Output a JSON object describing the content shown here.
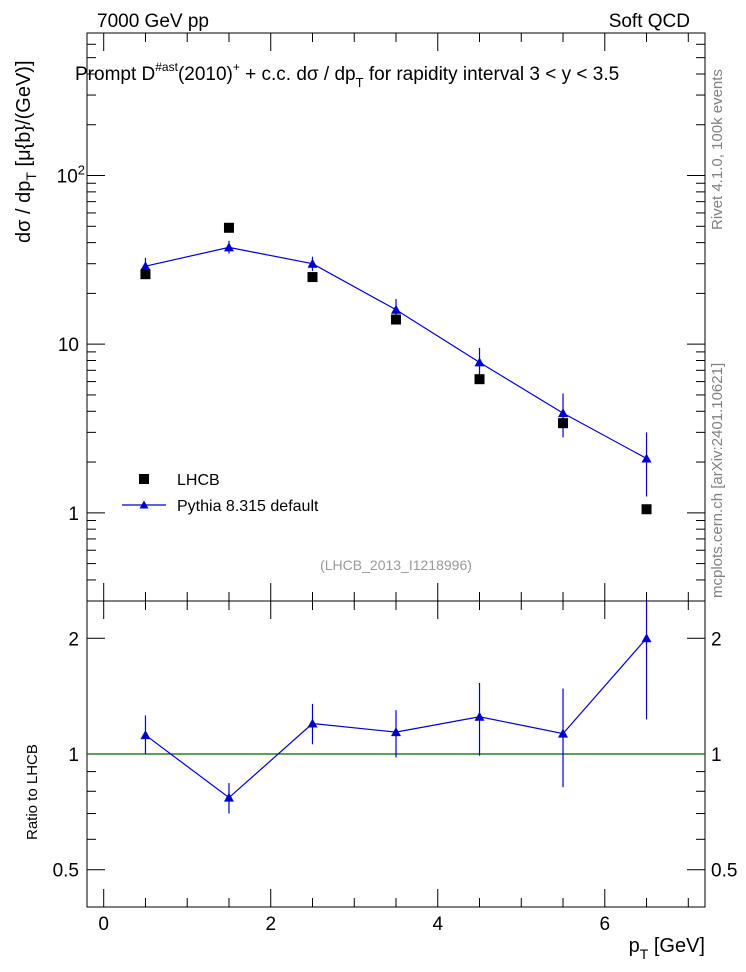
{
  "header": {
    "left": "7000 GeV pp",
    "right": "Soft QCD"
  },
  "side_labels": {
    "rivet": "Rivet 4.1.0,  100k events",
    "mcplots": "mcplots.cern.ch [arXiv:2401.10621]"
  },
  "watermark": "(LHCB_2013_I1218996)",
  "colors": {
    "mc": "#0000cc",
    "data": "#000000",
    "ref_line": "#006400",
    "text_gray": "#808080"
  },
  "chart_data": [
    {
      "type": "scatter",
      "title": {
        "prefix": "Prompt D",
        "sup1": "#ast",
        "middle": "(2010)",
        "sup2": "+",
        "rest": " + c.c.  dσ / dp",
        "sub": "T",
        "suffix": " for rapidity interval 3 < y < 3.5"
      },
      "ylabel": {
        "pre": "dσ / dp",
        "sub": "T",
        "post": " [μ{b}/(GeV)]"
      },
      "yscale": "log",
      "ylim": [
        0.3,
        700
      ],
      "yticks": [
        {
          "value": 1,
          "label": "1",
          "exp": ""
        },
        {
          "value": 10,
          "label": "10",
          "exp": ""
        },
        {
          "value": 100,
          "label": "10",
          "exp": "2"
        }
      ],
      "xlim": [
        -0.2,
        7.2
      ],
      "series": [
        {
          "name": "LHCB",
          "marker": "square",
          "x": [
            0.5,
            1.5,
            2.5,
            3.5,
            4.5,
            5.5,
            6.5
          ],
          "y": [
            26.0,
            49.0,
            25.0,
            14.0,
            6.2,
            3.4,
            1.05
          ],
          "yerr": [
            0,
            0,
            0,
            0,
            0,
            0,
            0
          ]
        },
        {
          "name": "Pythia 8.315 default",
          "marker": "triangle",
          "line": true,
          "x": [
            0.5,
            1.5,
            2.5,
            3.5,
            4.5,
            5.5,
            6.5
          ],
          "y": [
            29.0,
            37.5,
            30.0,
            16.0,
            7.8,
            3.9,
            2.1
          ],
          "yerr_up": [
            3.5,
            3.5,
            3.0,
            2.5,
            1.7,
            1.2,
            0.9
          ],
          "yerr_down": [
            3.0,
            3.0,
            2.8,
            2.2,
            1.4,
            1.1,
            0.85
          ]
        }
      ],
      "legend": {
        "placement": "lower-left"
      }
    },
    {
      "type": "scatter",
      "ylabel": "Ratio to LHCB",
      "yscale": "log",
      "ylim": [
        0.4,
        2.5
      ],
      "yticks": [
        {
          "value": 0.5,
          "label": "0.5"
        },
        {
          "value": 1,
          "label": "1"
        },
        {
          "value": 2,
          "label": "2"
        }
      ],
      "xlabel": {
        "pre": "p",
        "sub": "T",
        "post": " [GeV]"
      },
      "xlim": [
        -0.2,
        7.2
      ],
      "xticks": [
        {
          "value": 0,
          "label": "0"
        },
        {
          "value": 2,
          "label": "2"
        },
        {
          "value": 4,
          "label": "4"
        },
        {
          "value": 6,
          "label": "6"
        }
      ],
      "reference_line": 1,
      "series": [
        {
          "name": "Pythia 8.315 default",
          "marker": "triangle",
          "line": true,
          "x": [
            0.5,
            1.5,
            2.5,
            3.5,
            4.5,
            5.5,
            6.5
          ],
          "y": [
            1.12,
            0.77,
            1.2,
            1.14,
            1.25,
            1.13,
            2.0
          ],
          "yerr_up": [
            0.14,
            0.07,
            0.15,
            0.16,
            0.28,
            0.35,
            0.5
          ],
          "yerr_down": [
            0.12,
            0.07,
            0.14,
            0.16,
            0.26,
            0.31,
            0.77
          ]
        }
      ]
    }
  ]
}
